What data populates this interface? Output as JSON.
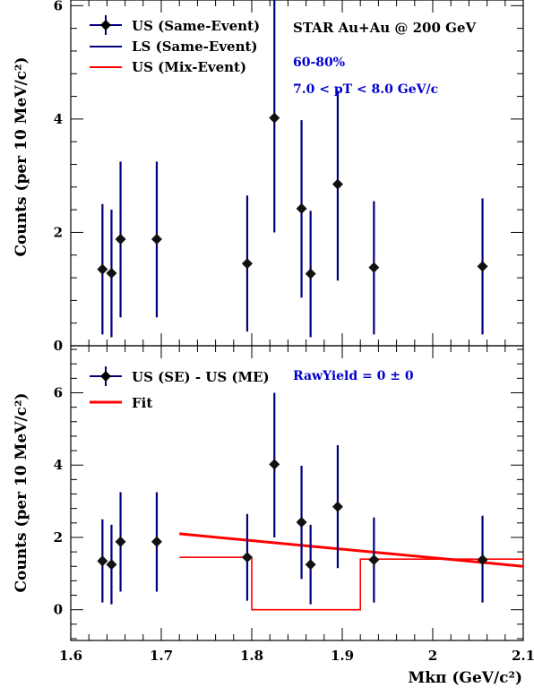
{
  "colors": {
    "data": "#00007f",
    "mix": "#ff0000",
    "text_blue": "#0000cc"
  },
  "top_panel": {
    "ylabel": "Counts (per 10 MeV/c²)",
    "legend": [
      "US (Same-Event)",
      "LS (Same-Event)",
      "US (Mix-Event)"
    ],
    "annotations": {
      "experiment": "STAR Au+Au @ 200 GeV",
      "centrality": "60-80%",
      "pt_range": "7.0 < pT < 8.0 GeV/c"
    }
  },
  "bottom_panel": {
    "ylabel": "Counts (per 10 MeV/c²)",
    "xlabel": "Mkπ (GeV/c²)",
    "legend": [
      "US (SE) - US (ME)",
      "Fit"
    ],
    "annotations": {
      "raw_yield": "RawYield = 0  ± 0"
    }
  },
  "chart_data": [
    {
      "type": "scatter",
      "panel": "top",
      "xlim": [
        1.6,
        2.1
      ],
      "ylim": [
        0,
        6.1
      ],
      "yticks": [
        0,
        2,
        4,
        6
      ],
      "series": [
        {
          "name": "US (Same-Event)",
          "points": [
            {
              "x": 1.635,
              "y": 1.35,
              "lo": 0.2,
              "hi": 2.5
            },
            {
              "x": 1.645,
              "y": 1.28,
              "lo": 0.15,
              "hi": 2.4
            },
            {
              "x": 1.655,
              "y": 1.88,
              "lo": 0.5,
              "hi": 3.25
            },
            {
              "x": 1.695,
              "y": 1.88,
              "lo": 0.5,
              "hi": 3.25
            },
            {
              "x": 1.795,
              "y": 1.45,
              "lo": 0.25,
              "hi": 2.65
            },
            {
              "x": 1.825,
              "y": 4.02,
              "lo": 2.0,
              "hi": 6.1
            },
            {
              "x": 1.855,
              "y": 2.42,
              "lo": 0.85,
              "hi": 3.98
            },
            {
              "x": 1.865,
              "y": 1.27,
              "lo": 0.15,
              "hi": 2.38
            },
            {
              "x": 1.895,
              "y": 2.85,
              "lo": 1.15,
              "hi": 4.5
            },
            {
              "x": 1.935,
              "y": 1.38,
              "lo": 0.2,
              "hi": 2.55
            },
            {
              "x": 2.055,
              "y": 1.4,
              "lo": 0.2,
              "hi": 2.6
            }
          ]
        }
      ]
    },
    {
      "type": "scatter",
      "panel": "bottom",
      "xlim": [
        1.6,
        2.1
      ],
      "ylim": [
        -0.85,
        7.3
      ],
      "xticks": [
        1.6,
        1.7,
        1.8,
        1.9,
        2.0,
        2.1
      ],
      "xticklabels": [
        "1.6",
        "1.7",
        "1.8",
        "1.9",
        "2",
        "2.1"
      ],
      "yticks": [
        0,
        2,
        4,
        6
      ],
      "series": [
        {
          "name": "US (SE) - US (ME)",
          "points": [
            {
              "x": 1.635,
              "y": 1.35,
              "lo": 0.2,
              "hi": 2.5
            },
            {
              "x": 1.645,
              "y": 1.25,
              "lo": 0.15,
              "hi": 2.35
            },
            {
              "x": 1.655,
              "y": 1.88,
              "lo": 0.5,
              "hi": 3.25
            },
            {
              "x": 1.695,
              "y": 1.88,
              "lo": 0.5,
              "hi": 3.25
            },
            {
              "x": 1.795,
              "y": 1.45,
              "lo": 0.25,
              "hi": 2.65
            },
            {
              "x": 1.825,
              "y": 4.02,
              "lo": 2.0,
              "hi": 6.0
            },
            {
              "x": 1.855,
              "y": 2.42,
              "lo": 0.85,
              "hi": 3.98
            },
            {
              "x": 1.865,
              "y": 1.25,
              "lo": 0.15,
              "hi": 2.35
            },
            {
              "x": 1.895,
              "y": 2.85,
              "lo": 1.15,
              "hi": 4.55
            },
            {
              "x": 1.935,
              "y": 1.38,
              "lo": 0.2,
              "hi": 2.55
            },
            {
              "x": 2.055,
              "y": 1.38,
              "lo": 0.2,
              "hi": 2.6
            }
          ]
        },
        {
          "name": "Fit",
          "line": [
            {
              "x": 1.72,
              "y": 2.1
            },
            {
              "x": 2.1,
              "y": 1.2
            }
          ]
        }
      ],
      "step": [
        {
          "x": 1.72,
          "y": 1.45
        },
        {
          "x": 1.8,
          "y": 1.45
        },
        {
          "x": 1.8,
          "y": 0.0
        },
        {
          "x": 1.92,
          "y": 0.0
        },
        {
          "x": 1.92,
          "y": 1.4
        },
        {
          "x": 2.1,
          "y": 1.4
        }
      ]
    }
  ]
}
